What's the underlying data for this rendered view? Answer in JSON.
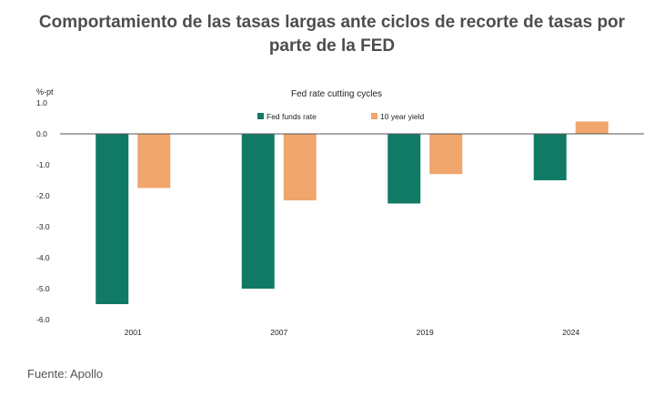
{
  "page_title": {
    "line1": "Comportamiento de las tasas largas ante ciclos de recorte de tasas por",
    "line2": "parte de la FED"
  },
  "source_note": "Fuente: Apollo",
  "colors": {
    "fed_funds": "#117a65",
    "ten_year": "#f0a66d",
    "axis": "#555555"
  },
  "chart_data": {
    "type": "bar",
    "title": "Fed rate cutting cycles",
    "ylabel": "%-pt",
    "ylim": [
      -6.0,
      1.0
    ],
    "yticks": [
      "1.0",
      "0.0",
      "-1.0",
      "-2.0",
      "-3.0",
      "-4.0",
      "-5.0",
      "-6.0"
    ],
    "grid": false,
    "legend_position": "top",
    "categories": [
      "2001",
      "2007",
      "2019",
      "2024"
    ],
    "series": [
      {
        "name": "Fed funds rate",
        "values": [
          -5.5,
          -5.0,
          -2.25,
          -1.5
        ]
      },
      {
        "name": "10 year yield",
        "values": [
          -1.75,
          -2.15,
          -1.3,
          0.4
        ]
      }
    ]
  }
}
